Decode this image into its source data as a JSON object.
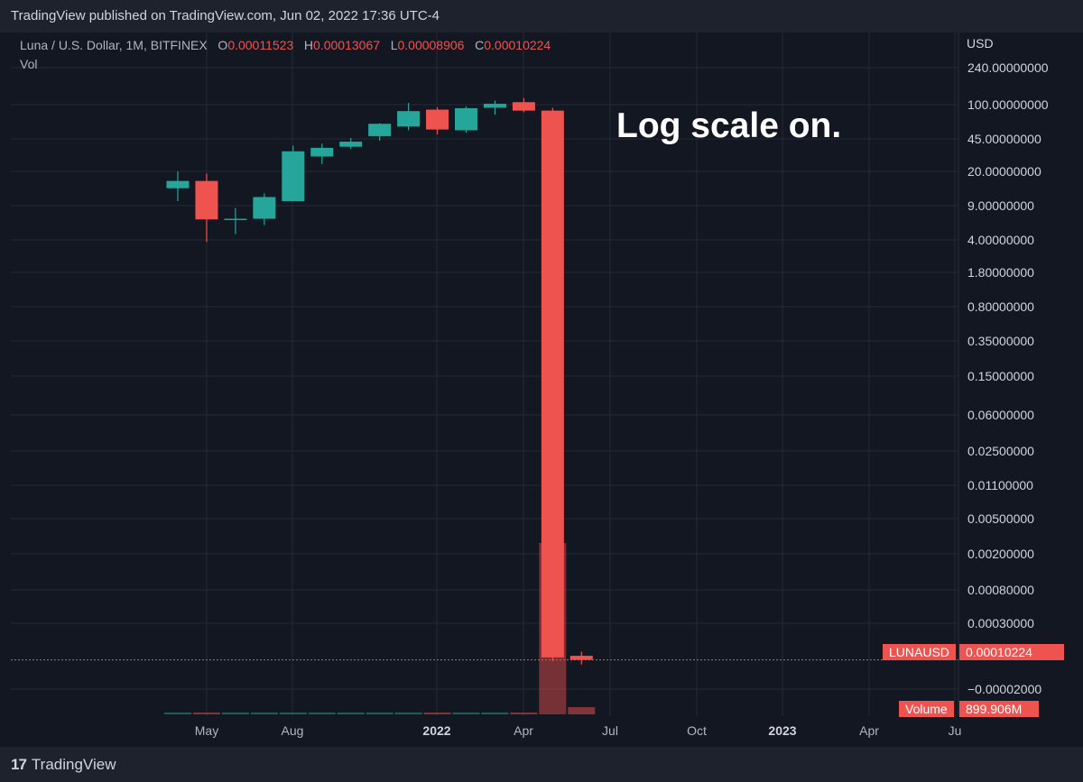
{
  "header": {
    "text": "TradingView published on TradingView.com, Jun 02, 2022 17:36 UTC-4"
  },
  "legend": {
    "symbol": "Luna / U.S. Dollar, 1M, BITFINEX",
    "o_label": "O",
    "o_value": "0.00011523",
    "h_label": "H",
    "h_value": "0.00013067",
    "l_label": "L",
    "l_value": "0.00008906",
    "c_label": "C",
    "c_value": "0.00010224",
    "vol_label": "Vol"
  },
  "annotation": "Log scale on.",
  "axis": {
    "currency": "USD",
    "ticks": [
      "240.00000000",
      "100.00000000",
      "45.00000000",
      "20.00000000",
      "9.00000000",
      "4.00000000",
      "1.80000000",
      "0.80000000",
      "0.35000000",
      "0.15000000",
      "0.06000000",
      "0.02500000",
      "0.01100000",
      "0.00500000",
      "0.00200000",
      "0.00080000",
      "0.00030000",
      "−0.00002000"
    ],
    "x_ticks": [
      {
        "label": "May",
        "bold": false
      },
      {
        "label": "Aug",
        "bold": false
      },
      {
        "label": "2022",
        "bold": true
      },
      {
        "label": "Apr",
        "bold": false
      },
      {
        "label": "Jul",
        "bold": false
      },
      {
        "label": "Oct",
        "bold": false
      },
      {
        "label": "2023",
        "bold": true
      },
      {
        "label": "Apr",
        "bold": false
      },
      {
        "label": "Ju",
        "bold": false
      }
    ]
  },
  "price_badge": {
    "symbol": "LUNAUSD",
    "value": "0.00010224"
  },
  "volume_badge": {
    "label": "Volume",
    "value": "899.906M"
  },
  "footer": {
    "brand": "TradingView",
    "mark": "17"
  },
  "colors": {
    "up": "#26a69a",
    "down": "#ef5350",
    "background": "#131722",
    "grid": "#252a36"
  },
  "chart_data": {
    "type": "candlestick",
    "title": "Luna / U.S. Dollar, 1M, BITFINEX",
    "y_scale": "log",
    "x_axis_ticks": [
      "May",
      "Aug",
      "2022",
      "Apr",
      "Jul",
      "Oct",
      "2023",
      "Apr",
      "Ju"
    ],
    "candles": [
      {
        "o": 13.5,
        "h": 20,
        "l": 10,
        "c": 16
      },
      {
        "o": 16,
        "h": 19,
        "l": 3.8,
        "c": 6.5
      },
      {
        "o": 6.5,
        "h": 8.5,
        "l": 4.6,
        "c": 6.6
      },
      {
        "o": 6.6,
        "h": 12,
        "l": 5.7,
        "c": 11
      },
      {
        "o": 10,
        "h": 38,
        "l": 10,
        "c": 33
      },
      {
        "o": 29,
        "h": 40,
        "l": 24,
        "c": 36
      },
      {
        "o": 37,
        "h": 46,
        "l": 35,
        "c": 42
      },
      {
        "o": 48,
        "h": 65,
        "l": 43,
        "c": 64
      },
      {
        "o": 60,
        "h": 104,
        "l": 55,
        "c": 86
      },
      {
        "o": 89,
        "h": 94,
        "l": 50,
        "c": 56
      },
      {
        "o": 55,
        "h": 96,
        "l": 52,
        "c": 92
      },
      {
        "o": 93,
        "h": 110,
        "l": 79,
        "c": 102
      },
      {
        "o": 106,
        "h": 117,
        "l": 84,
        "c": 87
      },
      {
        "o": 87,
        "h": 93,
        "l": 9.85e-05,
        "c": 0.00011
      },
      {
        "o": 0.00011523,
        "h": 0.00013067,
        "l": 8.906e-05,
        "c": 0.00010224
      }
    ],
    "volume": {
      "last_value": "899.906M",
      "peak_bar_index": 13
    }
  }
}
